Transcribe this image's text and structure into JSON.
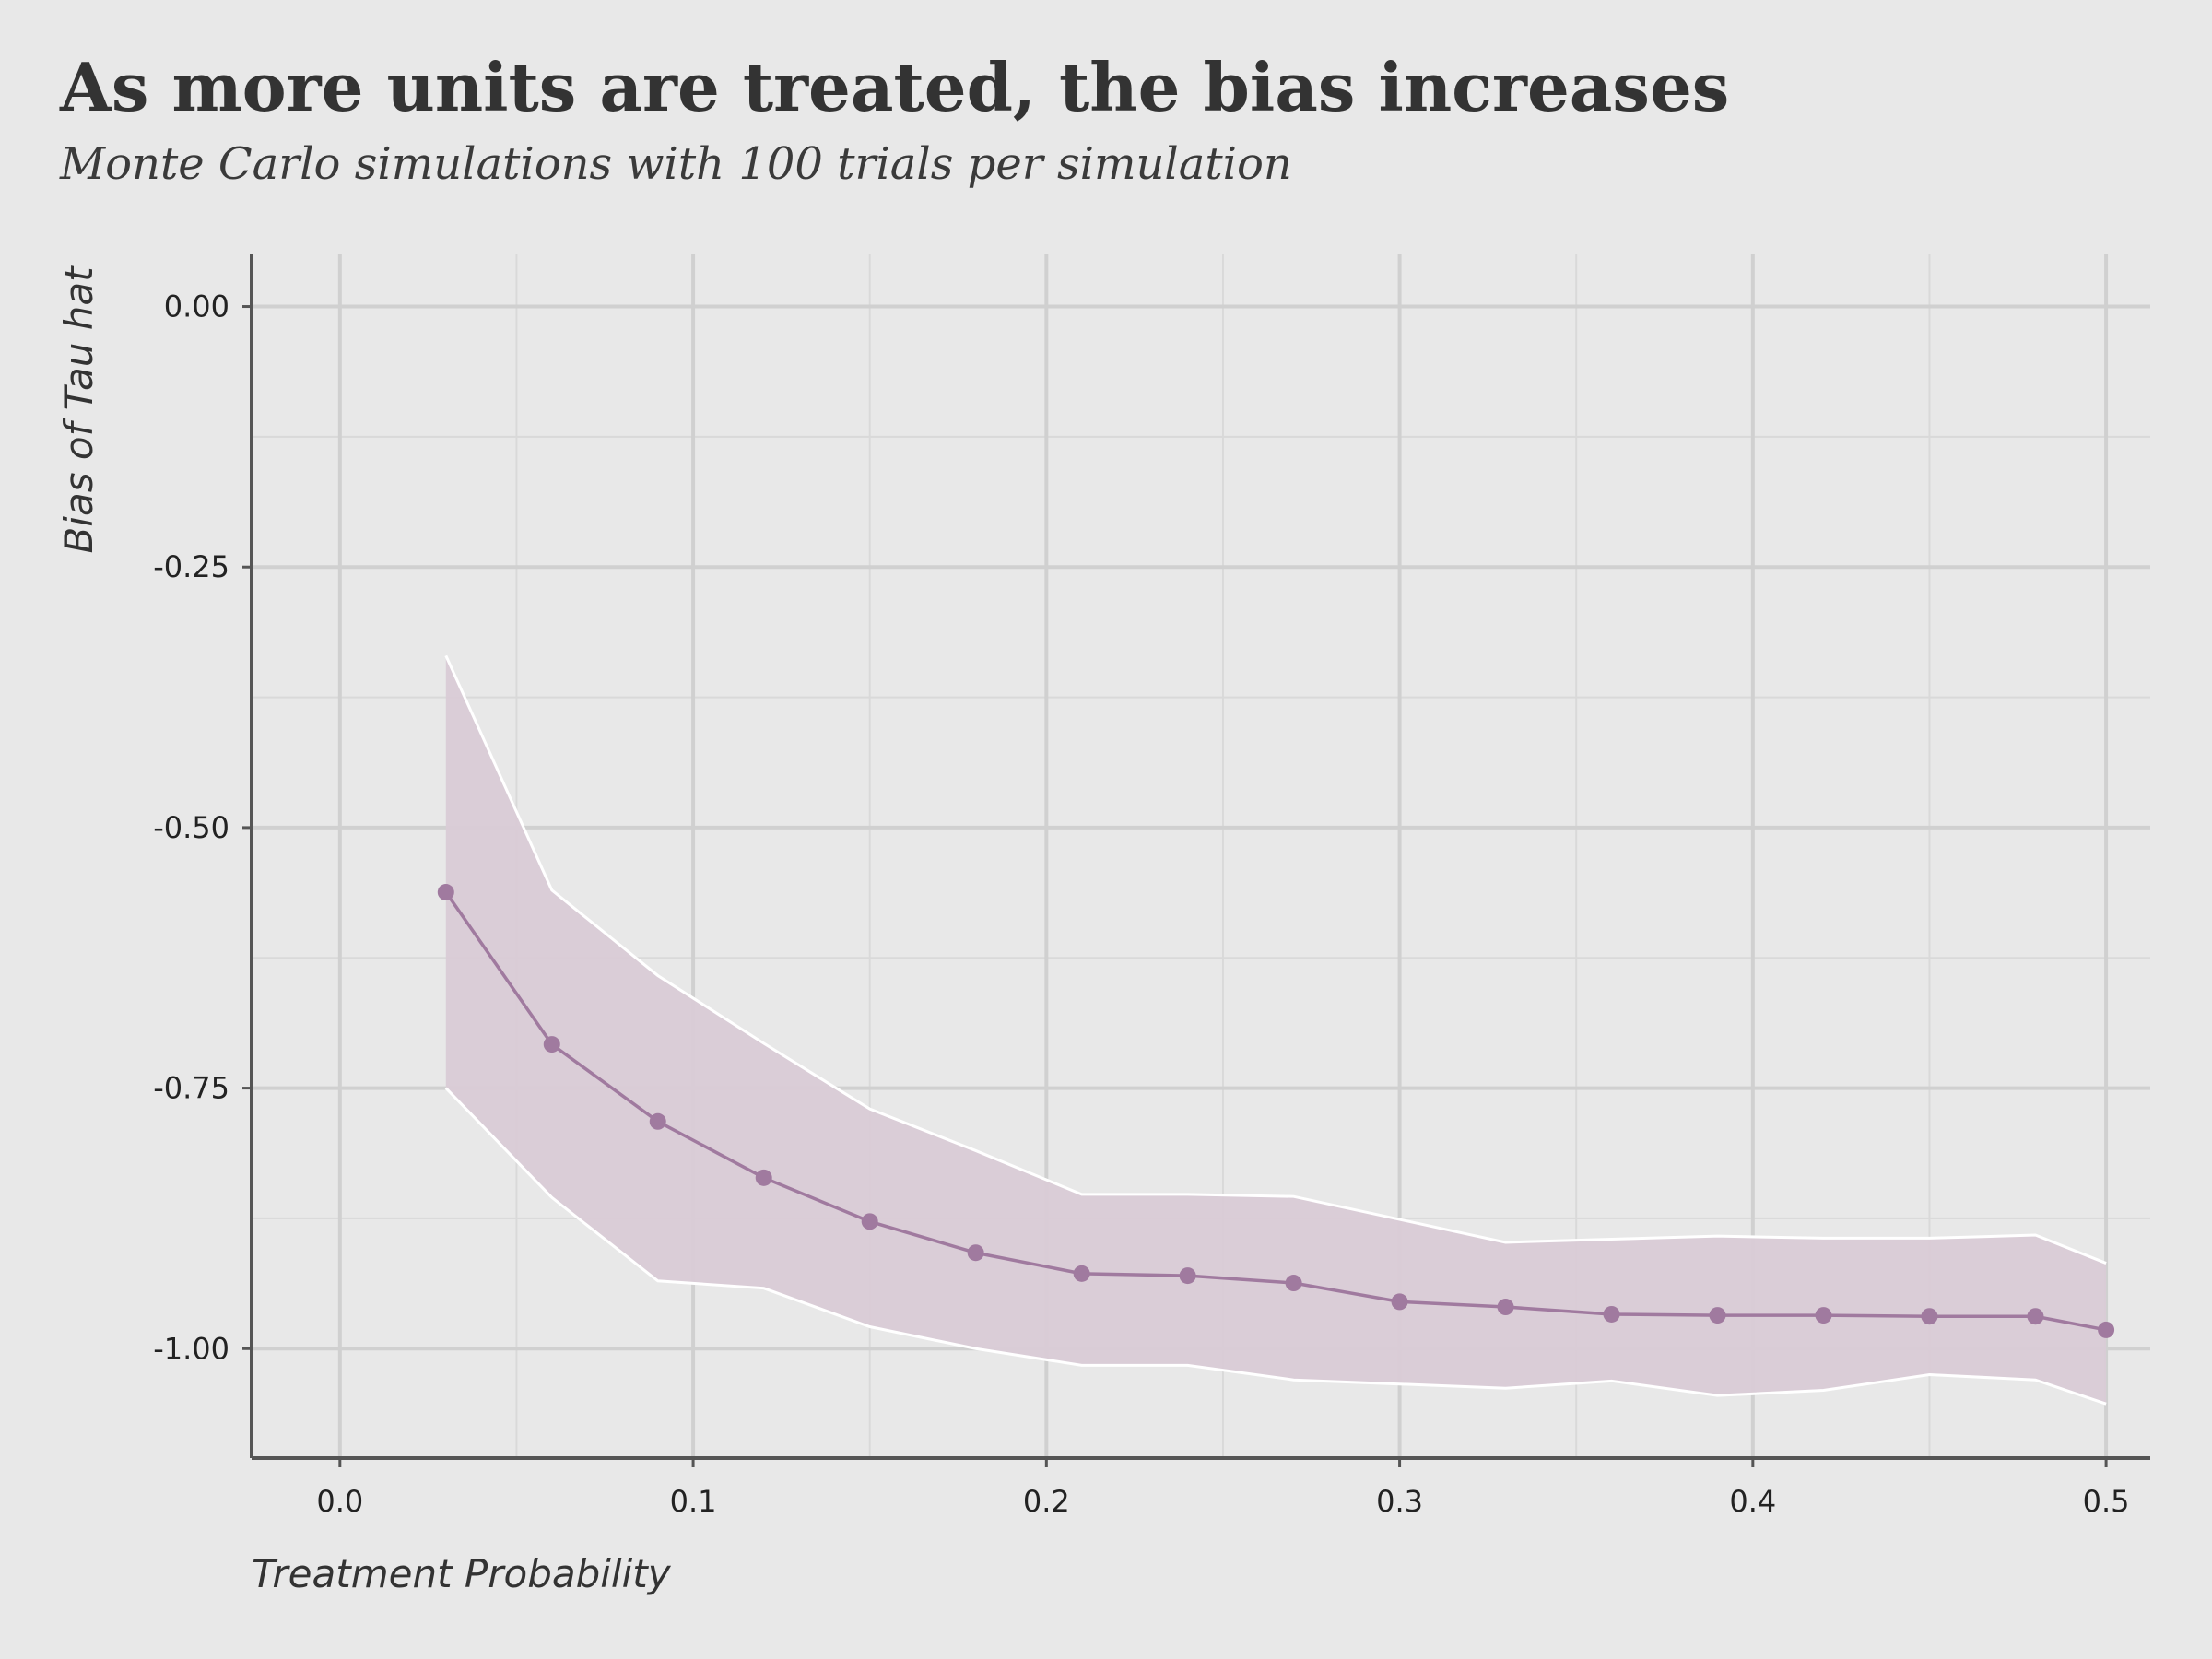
{
  "chart_data": {
    "type": "line",
    "title": "As more units are treated, the bias increases",
    "subtitle": "Monte Carlo simulations with 100 trials per simulation",
    "xlabel": "Treatment Probability",
    "ylabel": "Bias of Tau hat",
    "xlim": [
      -0.025,
      0.5125
    ],
    "ylim": [
      -1.105,
      0.05
    ],
    "x_ticks": [
      0.0,
      0.1,
      0.2,
      0.3,
      0.4,
      0.5
    ],
    "x_tick_labels": [
      "0.0",
      "0.1",
      "0.2",
      "0.3",
      "0.4",
      "0.5"
    ],
    "y_ticks": [
      0.0,
      -0.25,
      -0.5,
      -0.75,
      -1.0
    ],
    "y_tick_labels": [
      "0.00",
      "-0.25",
      "-0.50",
      "-0.75",
      "-1.00"
    ],
    "grid": true,
    "x": [
      0.03,
      0.06,
      0.09,
      0.12,
      0.15,
      0.18,
      0.21,
      0.24,
      0.27,
      0.3,
      0.33,
      0.36,
      0.39,
      0.42,
      0.45,
      0.48,
      0.5
    ],
    "series": [
      {
        "values": [
          -0.562,
          -0.708,
          -0.782,
          -0.836,
          -0.878,
          -0.908,
          -0.928,
          -0.93,
          -0.937,
          -0.955,
          -0.96,
          -0.967,
          -0.968,
          -0.968,
          -0.969,
          -0.969,
          -0.982
        ],
        "upper": [
          -0.335,
          -0.56,
          -0.642,
          -0.707,
          -0.77,
          -0.81,
          -0.852,
          -0.852,
          -0.854,
          -0.876,
          -0.898,
          -0.895,
          -0.892,
          -0.894,
          -0.894,
          -0.891,
          -0.918
        ],
        "lower": [
          -0.75,
          -0.855,
          -0.935,
          -0.942,
          -0.979,
          -1.0,
          -1.016,
          -1.016,
          -1.03,
          -1.034,
          -1.038,
          -1.031,
          -1.045,
          -1.04,
          -1.025,
          -1.03,
          -1.053
        ],
        "line_color": "#a07a9f",
        "band_color": "#d9cbd6",
        "band_edge_color": "#ffffff"
      }
    ],
    "colors": {
      "background": "#e8e8e8",
      "grid_major": "#d0d0d0",
      "grid_minor": "#d9d9d9",
      "axis_line": "#555555"
    }
  }
}
